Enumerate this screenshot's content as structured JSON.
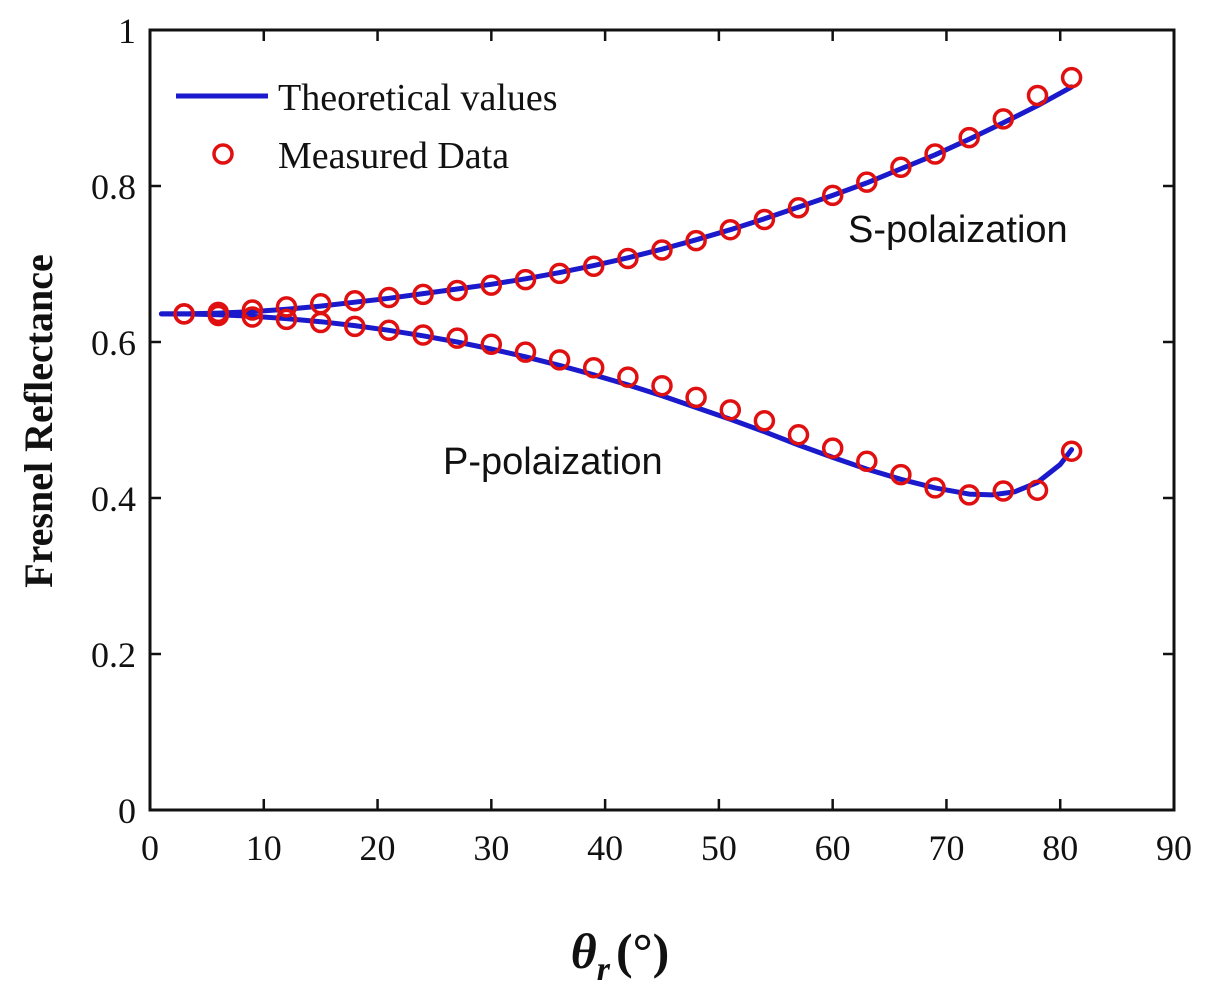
{
  "chart_data": {
    "type": "line",
    "title": "",
    "xlabel_symbol": "θ",
    "xlabel_subscript": "r",
    "xlabel_unit": "(°)",
    "ylabel": "Fresnel Reflectance",
    "xlim": [
      0,
      90
    ],
    "ylim": [
      0,
      1
    ],
    "xticks": [
      0,
      10,
      20,
      30,
      40,
      50,
      60,
      70,
      80,
      90
    ],
    "yticks": [
      0,
      0.2,
      0.4,
      0.6,
      0.8,
      1
    ],
    "ytick_labels": [
      "0",
      "0.2",
      "0.4",
      "0.6",
      "0.8",
      "1"
    ],
    "xtick_labels": [
      "0",
      "10",
      "20",
      "30",
      "40",
      "50",
      "60",
      "70",
      "80",
      "90"
    ],
    "grid": false,
    "legend_position": "top-left",
    "legend": [
      {
        "label": "Theoretical values",
        "style": "line",
        "color": "#1a1acc"
      },
      {
        "label": "Measured Data",
        "style": "circle",
        "color": "#e01010"
      }
    ],
    "annotations": {
      "s": "S-polaization",
      "p": "P-polaization"
    },
    "series": [
      {
        "name": "S-polaization theoretical",
        "kind": "line",
        "color": "#1a1acc",
        "x": [
          1,
          3,
          6,
          9,
          12,
          15,
          18,
          21,
          24,
          27,
          30,
          33,
          36,
          39,
          42,
          45,
          48,
          51,
          54,
          57,
          60,
          63,
          66,
          69,
          72,
          75,
          78,
          81
        ],
        "y": [
          0.636,
          0.636,
          0.637,
          0.639,
          0.642,
          0.646,
          0.651,
          0.656,
          0.662,
          0.668,
          0.674,
          0.681,
          0.689,
          0.698,
          0.708,
          0.719,
          0.731,
          0.744,
          0.758,
          0.773,
          0.788,
          0.804,
          0.822,
          0.84,
          0.86,
          0.881,
          0.903,
          0.927
        ]
      },
      {
        "name": "P-polaization theoretical",
        "kind": "line",
        "color": "#1a1acc",
        "x": [
          1,
          3,
          6,
          9,
          12,
          15,
          18,
          21,
          24,
          27,
          30,
          33,
          36,
          39,
          42,
          45,
          48,
          51,
          54,
          57,
          60,
          63,
          66,
          69,
          72,
          74,
          76,
          78,
          80,
          81
        ],
        "y": [
          0.636,
          0.636,
          0.635,
          0.633,
          0.63,
          0.626,
          0.621,
          0.615,
          0.608,
          0.6,
          0.591,
          0.581,
          0.57,
          0.558,
          0.545,
          0.531,
          0.516,
          0.501,
          0.485,
          0.468,
          0.452,
          0.437,
          0.424,
          0.413,
          0.405,
          0.404,
          0.408,
          0.42,
          0.443,
          0.462
        ]
      },
      {
        "name": "S-polaization measured",
        "kind": "scatter",
        "color": "#e01010",
        "x": [
          3,
          6,
          9,
          12,
          15,
          18,
          21,
          24,
          27,
          30,
          33,
          36,
          39,
          42,
          45,
          48,
          51,
          54,
          57,
          60,
          63,
          66,
          69,
          72,
          75,
          78,
          81
        ],
        "y": [
          0.636,
          0.638,
          0.641,
          0.645,
          0.649,
          0.653,
          0.657,
          0.661,
          0.666,
          0.673,
          0.68,
          0.688,
          0.697,
          0.707,
          0.718,
          0.73,
          0.744,
          0.757,
          0.772,
          0.788,
          0.805,
          0.824,
          0.841,
          0.862,
          0.886,
          0.916,
          0.939
        ]
      },
      {
        "name": "P-polaization measured",
        "kind": "scatter",
        "color": "#e01010",
        "x": [
          3,
          6,
          9,
          12,
          15,
          18,
          21,
          24,
          27,
          30,
          33,
          36,
          39,
          42,
          45,
          48,
          51,
          54,
          57,
          60,
          63,
          66,
          69,
          72,
          75,
          78,
          81
        ],
        "y": [
          0.636,
          0.634,
          0.632,
          0.629,
          0.625,
          0.62,
          0.615,
          0.609,
          0.605,
          0.597,
          0.587,
          0.577,
          0.567,
          0.555,
          0.544,
          0.529,
          0.513,
          0.499,
          0.481,
          0.464,
          0.447,
          0.43,
          0.413,
          0.404,
          0.409,
          0.41,
          0.46
        ]
      }
    ]
  }
}
